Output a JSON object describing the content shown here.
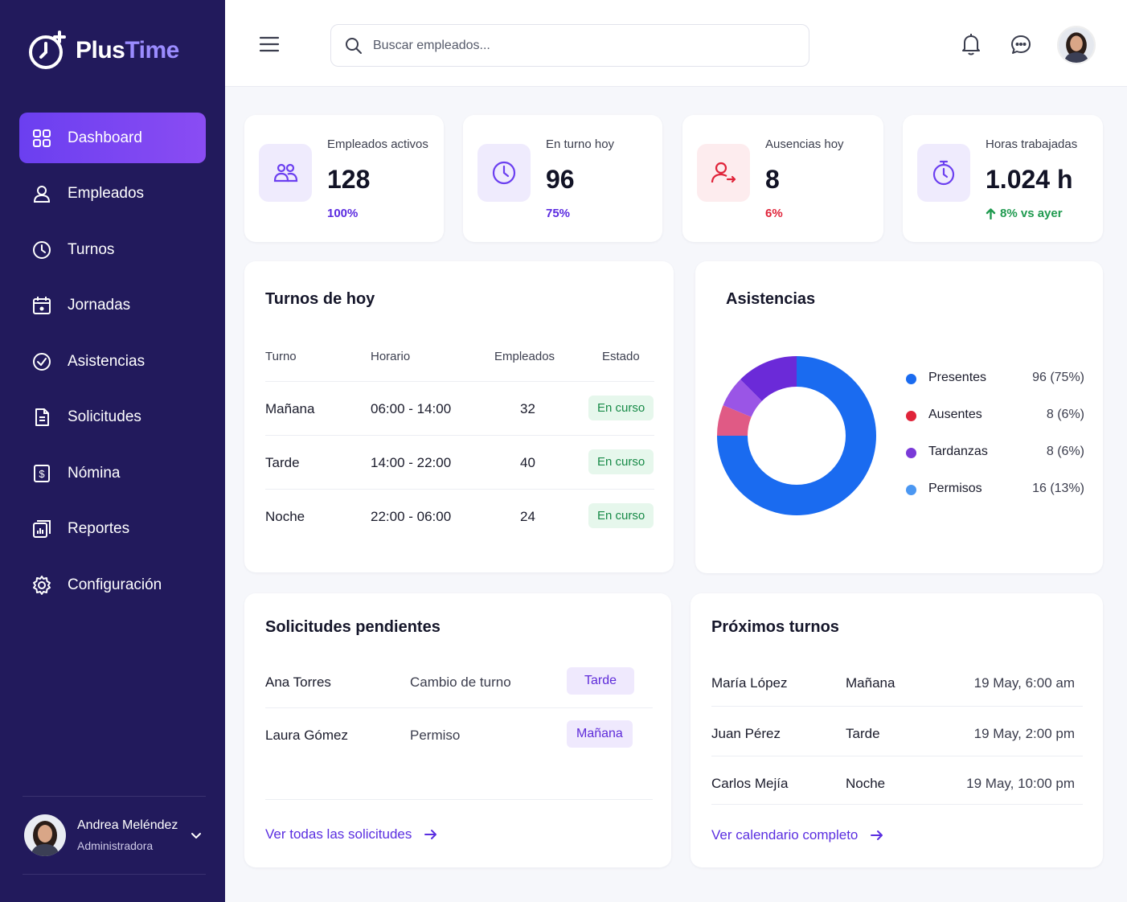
{
  "brand": {
    "name_a": "Plus",
    "name_b": "Time"
  },
  "sidebar": {
    "items": [
      {
        "label": "Dashboard",
        "icon": "grid-icon",
        "active": true
      },
      {
        "label": "Empleados",
        "icon": "user-icon"
      },
      {
        "label": "Turnos",
        "icon": "clock-icon"
      },
      {
        "label": "Jornadas",
        "icon": "calendar-icon"
      },
      {
        "label": "Asistencias",
        "icon": "check-circle-icon"
      },
      {
        "label": "Solicitudes",
        "icon": "document-icon"
      },
      {
        "label": "Nómina",
        "icon": "dollar-icon"
      },
      {
        "label": "Reportes",
        "icon": "report-icon"
      },
      {
        "label": "Configuración",
        "icon": "gear-icon"
      }
    ],
    "user": {
      "name": "Andrea Meléndez",
      "role": "Administradora"
    }
  },
  "header": {
    "search_placeholder": "Buscar empleados..."
  },
  "stats": [
    {
      "label": "Empleados activos",
      "value": "128",
      "sub": "100%",
      "sub_color": "#5b2be0",
      "icon": "users-icon",
      "icon_bg": "#efebfd",
      "icon_color": "#6b3ff0"
    },
    {
      "label": "En turno hoy",
      "value": "96",
      "sub": "75%",
      "sub_color": "#5b2be0",
      "icon": "clock-icon",
      "icon_bg": "#efebfd",
      "icon_color": "#6b3ff0"
    },
    {
      "label": "Ausencias hoy",
      "value": "8",
      "sub": "6%",
      "sub_color": "#e0243a",
      "icon": "user-absent-icon",
      "icon_bg": "#fdecee",
      "icon_color": "#e0243a"
    },
    {
      "label": "Horas trabajadas",
      "value": "1.024 h",
      "sub": "8% vs ayer",
      "sub_color": "#1f9a4f",
      "icon": "stopwatch-icon",
      "icon_bg": "#efebfd",
      "icon_color": "#6b3ff0"
    }
  ],
  "shifts": {
    "title": "Turnos de hoy",
    "headers": [
      "Turno",
      "Horario",
      "Empleados",
      "Estado"
    ],
    "rows": [
      {
        "turno": "Mañana",
        "horario": "06:00 - 14:00",
        "empleados": "32",
        "estado": "En curso"
      },
      {
        "turno": "Tarde",
        "horario": "14:00 - 22:00",
        "empleados": "40",
        "estado": "En curso"
      },
      {
        "turno": "Noche",
        "horario": "22:00 - 06:00",
        "empleados": "24",
        "estado": "En curso"
      }
    ]
  },
  "attendance": {
    "title": "Asistencias",
    "chart_data": {
      "type": "pie",
      "categories": [
        "Presentes",
        "Ausentes",
        "Tardanzas",
        "Permisos"
      ],
      "values": [
        96,
        8,
        8,
        16
      ],
      "labels": [
        "96 (75%)",
        "8 (6%)",
        "8 (6%)",
        "16 (13%)"
      ],
      "colors": [
        "#1a6bf0",
        "#e0243a",
        "#7a3ad8",
        "#4b97f2"
      ],
      "segment_colors": [
        "#1a6bf0",
        "#e05a85",
        "#9a55e6",
        "#6b2ad8"
      ],
      "legend": "right"
    }
  },
  "requests": {
    "title": "Solicitudes pendientes",
    "rows": [
      {
        "name": "Ana Torres",
        "type": "Cambio de turno",
        "shift": "Tarde"
      },
      {
        "name": "Laura Gómez",
        "type": "Permiso",
        "shift": "Mañana"
      }
    ],
    "link": "Ver todas las solicitudes"
  },
  "upcoming": {
    "title": "Próximos turnos",
    "rows": [
      {
        "name": "María López",
        "shift": "Mañana",
        "date": "19 May, 6:00 am"
      },
      {
        "name": "Juan Pérez",
        "shift": "Tarde",
        "date": "19 May, 2:00 pm"
      },
      {
        "name": "Carlos Mejía",
        "shift": "Noche",
        "date": "19 May, 10:00 pm"
      }
    ],
    "link": "Ver calendario completo"
  }
}
